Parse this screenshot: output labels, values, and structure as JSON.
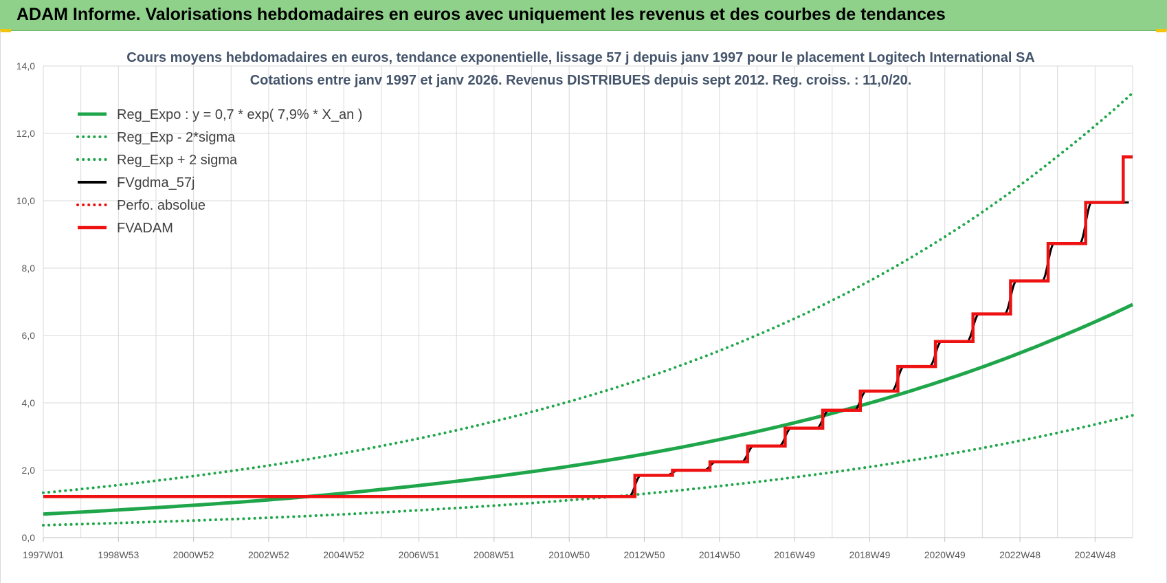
{
  "header": {
    "title": "ADAM Informe. Valorisations hebdomadaires en euros avec uniquement les revenus et des courbes de tendances"
  },
  "colors": {
    "header_bg": "#8fd18a",
    "trend_green": "#1fa64a",
    "fv_red": "#ee1111",
    "fv_black": "#000000",
    "grid": "#d9d9d9"
  },
  "chart_data": {
    "type": "line",
    "title": "Cours moyens hebdomadaires en euros, tendance exponentielle, lissage 57 j depuis janv 1997  pour le placement Logitech International SA",
    "subtitle": "Cotations entre janv 1997 et janv 2026. Revenus DISTRIBUES depuis sept 2012. Reg. croiss. : 11,0/20.",
    "xlabel": "",
    "ylabel": "",
    "grid": true,
    "legend_position": "top-left",
    "ylim": [
      0,
      14
    ],
    "y_ticks": [
      "0,0",
      "2,0",
      "4,0",
      "6,0",
      "8,0",
      "10,0",
      "12,0",
      "14,0"
    ],
    "x_ticks": [
      "1997W01",
      "1998W53",
      "2000W52",
      "2002W52",
      "2004W52",
      "2006W51",
      "2008W51",
      "2010W50",
      "2012W50",
      "2014W50",
      "2016W49",
      "2018W49",
      "2020W49",
      "2022W48",
      "2024W48"
    ],
    "xlim": [
      1997.0,
      2026.0
    ],
    "regression": {
      "intercept": 0.7,
      "growth_rate": 0.079,
      "formula": "Reg_Expo : y = 0,7 * exp( 7,9% *  X_an )"
    },
    "series": [
      {
        "name": "Reg_Expo : y = 0,7 * exp( 7,9% *  X_an )",
        "style": "solid",
        "color": "#1fa64a",
        "x": [
          1997,
          2000,
          2003,
          2006,
          2009,
          2012,
          2015,
          2018,
          2021,
          2024,
          2026
        ],
        "y": [
          0.7,
          0.89,
          1.12,
          1.43,
          1.81,
          2.29,
          2.91,
          3.69,
          4.68,
          5.93,
          6.92
        ]
      },
      {
        "name": "Reg_Exp - 2*sigma",
        "style": "dotted",
        "color": "#1fa64a",
        "x": [
          1997,
          2000,
          2003,
          2006,
          2009,
          2012,
          2015,
          2018,
          2021,
          2024,
          2026
        ],
        "y": [
          0.37,
          0.47,
          0.59,
          0.75,
          0.95,
          1.2,
          1.53,
          1.94,
          2.46,
          3.11,
          3.63
        ]
      },
      {
        "name": "Reg_Exp + 2 sigma",
        "style": "dotted",
        "color": "#1fa64a",
        "x": [
          1997,
          2000,
          2003,
          2006,
          2009,
          2012,
          2015,
          2018,
          2021,
          2024,
          2026
        ],
        "y": [
          1.33,
          1.69,
          2.14,
          2.72,
          3.45,
          4.37,
          5.55,
          7.04,
          8.93,
          11.32,
          13.2
        ]
      },
      {
        "name": "FVgdma_57j",
        "style": "solid-smoothed",
        "color": "#000000",
        "smoothing_years": 0.16,
        "x": [
          1997.0,
          2012.75,
          2012.75,
          2013.75,
          2013.75,
          2014.75,
          2014.75,
          2015.75,
          2015.75,
          2016.75,
          2016.75,
          2017.75,
          2017.75,
          2018.75,
          2018.75,
          2019.75,
          2019.75,
          2020.75,
          2020.75,
          2021.75,
          2021.75,
          2022.75,
          2022.75,
          2023.75,
          2023.75,
          2024.75,
          2024.75,
          2025.9
        ],
        "y": [
          1.22,
          1.22,
          1.85,
          1.85,
          2.0,
          2.0,
          2.25,
          2.25,
          2.72,
          2.72,
          3.25,
          3.25,
          3.78,
          3.78,
          4.35,
          4.35,
          5.08,
          5.08,
          5.82,
          5.82,
          6.64,
          6.64,
          7.62,
          7.62,
          8.73,
          8.73,
          9.95,
          9.95
        ]
      },
      {
        "name": "Perfo. absolue",
        "style": "dotted",
        "color": "#ee1111",
        "x": [],
        "y": []
      },
      {
        "name": "FVADAM",
        "style": "step",
        "color": "#ee1111",
        "x": [
          1997.0,
          2012.75,
          2012.75,
          2013.75,
          2013.75,
          2014.75,
          2014.75,
          2015.75,
          2015.75,
          2016.75,
          2016.75,
          2017.75,
          2017.75,
          2018.75,
          2018.75,
          2019.75,
          2019.75,
          2020.75,
          2020.75,
          2021.75,
          2021.75,
          2022.75,
          2022.75,
          2023.75,
          2023.75,
          2024.75,
          2024.75,
          2025.75,
          2025.75,
          2026.0
        ],
        "y": [
          1.22,
          1.22,
          1.85,
          1.85,
          2.0,
          2.0,
          2.25,
          2.25,
          2.72,
          2.72,
          3.25,
          3.25,
          3.78,
          3.78,
          4.35,
          4.35,
          5.08,
          5.08,
          5.82,
          5.82,
          6.64,
          6.64,
          7.62,
          7.62,
          8.73,
          8.73,
          9.95,
          9.95,
          11.3,
          11.3
        ]
      }
    ]
  }
}
